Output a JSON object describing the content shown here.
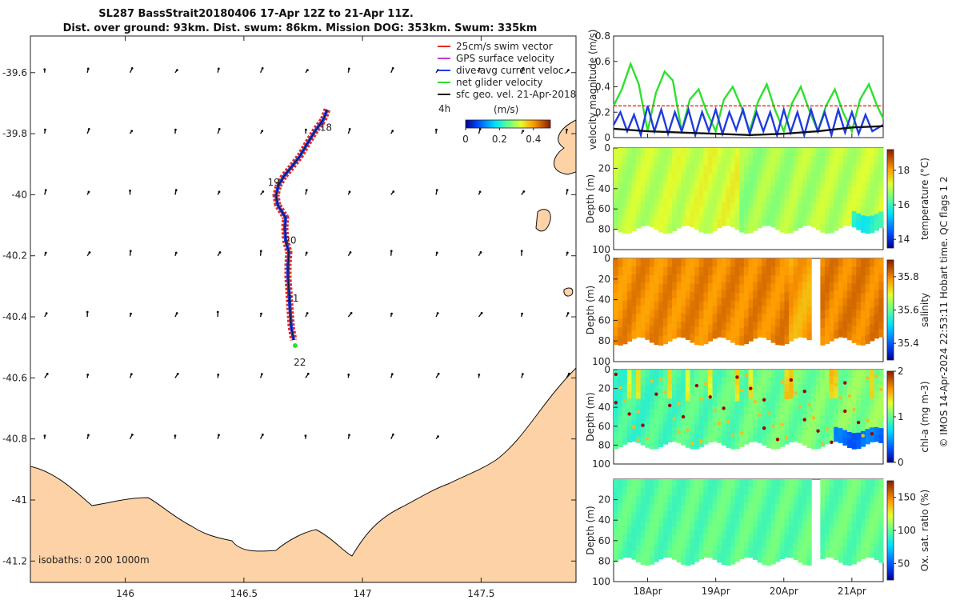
{
  "title": {
    "line1": "SL287 BassStrait20180406 17-Apr 12Z to 21-Apr 11Z.",
    "line2": "Dist. over ground: 93km. Dist. swum: 86km. Mission DOG: 353km. Swum: 335km"
  },
  "map": {
    "lon_ticks": [
      "146",
      "146.5",
      "147",
      "147.5"
    ],
    "lon_values": [
      146,
      146.5,
      147,
      147.5
    ],
    "lat_ticks": [
      "-39.6",
      "-39.8",
      "-40",
      "-40.2",
      "-40.4",
      "-40.6",
      "-40.8",
      "-41",
      "-41.2"
    ],
    "lat_values": [
      -39.6,
      -39.8,
      -40,
      -40.2,
      -40.4,
      -40.6,
      -40.8,
      -41,
      -41.2
    ],
    "legend": [
      {
        "label": "25cm/s swim vector",
        "color": "#e8281e"
      },
      {
        "label": "GPS surface velocity",
        "color": "#c23bd4"
      },
      {
        "label": "dive-avg current veloc.",
        "color": "#1f3be0"
      },
      {
        "label": "net glider velocity",
        "color": "#2ee02e"
      },
      {
        "label": "sfc geo. vel. 21-Apr-2018",
        "color": "#111111"
      }
    ],
    "colorbar_label": "(m/s)",
    "colorbar_ticks": [
      "0",
      "0.2",
      "0.4"
    ],
    "colorbar_tick_values": [
      0,
      0.2,
      0.4
    ],
    "arrow_scale_label": "4h",
    "day_labels": [
      {
        "text": "18",
        "lon": 146.82,
        "lat": -39.79
      },
      {
        "text": "19",
        "lon": 146.6,
        "lat": -39.97
      },
      {
        "text": "20",
        "lon": 146.67,
        "lat": -40.16
      },
      {
        "text": "21",
        "lon": 146.68,
        "lat": -40.35
      },
      {
        "text": "22",
        "lon": 146.71,
        "lat": -40.56
      }
    ],
    "isobaths_text": "isobaths: 0   200  1000m"
  },
  "chart_data": [
    {
      "type": "line",
      "name": "velocity magnitude",
      "ylabel": "velocity magnitude (m/s)",
      "ylim": [
        0,
        0.8
      ],
      "yticks": [
        "0",
        "0.2",
        "0.4",
        "0.6",
        "0.8"
      ],
      "ytick_values": [
        0,
        0.2,
        0.4,
        0.6,
        0.8
      ],
      "x_range": [
        "17-Apr 12Z",
        "21-Apr 11Z"
      ],
      "swim_reference": 0.25,
      "series": [
        {
          "color": "#2ee02e",
          "x": [
            17.5,
            17.62,
            17.75,
            17.87,
            18.0,
            18.12,
            18.25,
            18.37,
            18.5,
            18.62,
            18.75,
            18.87,
            19.0,
            19.12,
            19.25,
            19.37,
            19.5,
            19.62,
            19.75,
            19.87,
            20.0,
            20.12,
            20.25,
            20.37,
            20.5,
            20.62,
            20.75,
            20.87,
            21.0,
            21.12,
            21.25,
            21.37,
            21.46
          ],
          "values": [
            0.25,
            0.38,
            0.58,
            0.42,
            0.05,
            0.35,
            0.52,
            0.45,
            0.05,
            0.3,
            0.38,
            0.2,
            0.05,
            0.3,
            0.4,
            0.25,
            0.05,
            0.28,
            0.42,
            0.22,
            0.05,
            0.27,
            0.4,
            0.22,
            0.05,
            0.25,
            0.38,
            0.2,
            0.05,
            0.3,
            0.42,
            0.25,
            0.15
          ]
        },
        {
          "color": "#1f3be0",
          "x": [
            17.5,
            17.6,
            17.7,
            17.8,
            17.9,
            18.0,
            18.1,
            18.2,
            18.3,
            18.4,
            18.5,
            18.6,
            18.7,
            18.8,
            18.9,
            19.0,
            19.1,
            19.2,
            19.3,
            19.4,
            19.5,
            19.6,
            19.7,
            19.8,
            19.9,
            20.0,
            20.1,
            20.2,
            20.3,
            20.4,
            20.5,
            20.6,
            20.7,
            20.8,
            20.9,
            21.0,
            21.1,
            21.2,
            21.3,
            21.46
          ],
          "values": [
            0.1,
            0.2,
            0.05,
            0.18,
            0.02,
            0.25,
            0.05,
            0.22,
            0.03,
            0.2,
            0.05,
            0.22,
            0.02,
            0.2,
            0.05,
            0.22,
            0.03,
            0.2,
            0.06,
            0.22,
            0.03,
            0.2,
            0.05,
            0.2,
            0.02,
            0.22,
            0.04,
            0.2,
            0.02,
            0.22,
            0.05,
            0.2,
            0.02,
            0.22,
            0.04,
            0.2,
            0.03,
            0.18,
            0.05,
            0.1
          ]
        },
        {
          "color": "#111111",
          "x": [
            17.5,
            18.0,
            18.5,
            19.0,
            19.5,
            20.0,
            20.5,
            21.0,
            21.46
          ],
          "values": [
            0.07,
            0.05,
            0.04,
            0.03,
            0.02,
            0.03,
            0.05,
            0.08,
            0.09
          ]
        },
        {
          "color": "#e8281e",
          "x": [
            17.5,
            21.46
          ],
          "values": [
            0.25,
            0.25
          ]
        }
      ],
      "xticks": [
        "18Apr",
        "19Apr",
        "20Apr",
        "21Apr"
      ],
      "xtick_values": [
        18,
        19,
        20,
        21
      ]
    },
    {
      "type": "heatmap",
      "name": "temperature",
      "ylabel": "Depth (m)",
      "clabel": "temperature (°C)",
      "ylim": [
        100,
        0
      ],
      "yticks": [
        "0",
        "20",
        "40",
        "60",
        "80",
        "100"
      ],
      "ytick_values": [
        0,
        20,
        40,
        60,
        80,
        100
      ],
      "cticks": [
        "14",
        "16",
        "18"
      ],
      "ctick_values": [
        14,
        16,
        18
      ],
      "clim": [
        13.5,
        19.2
      ]
    },
    {
      "type": "heatmap",
      "name": "salinity",
      "ylabel": "Depth (m)",
      "clabel": "salinity",
      "ylim": [
        100,
        0
      ],
      "yticks": [
        "0",
        "20",
        "40",
        "60",
        "80",
        "100"
      ],
      "ytick_values": [
        0,
        20,
        40,
        60,
        80,
        100
      ],
      "cticks": [
        "35.4",
        "35.6",
        "35.8"
      ],
      "ctick_values": [
        35.4,
        35.6,
        35.8
      ],
      "clim": [
        35.3,
        35.9
      ]
    },
    {
      "type": "heatmap",
      "name": "chl-a",
      "ylabel": "Depth (m)",
      "clabel": "chl-a (mg m-3)",
      "ylim": [
        100,
        0
      ],
      "yticks": [
        "0",
        "20",
        "40",
        "60",
        "80",
        "100"
      ],
      "ytick_values": [
        0,
        20,
        40,
        60,
        80,
        100
      ],
      "cticks": [
        "0",
        "1",
        "2"
      ],
      "ctick_values": [
        0,
        1,
        2
      ],
      "clim": [
        0,
        2
      ]
    },
    {
      "type": "heatmap",
      "name": "oxygen saturation",
      "ylabel": "Depth (m)",
      "clabel": "Ox. sat. ratio (%)",
      "ylim": [
        100,
        0
      ],
      "yticks": [
        "20",
        "40",
        "60",
        "80",
        "100"
      ],
      "ytick_values": [
        20,
        40,
        60,
        80,
        100
      ],
      "cticks": [
        "50",
        "100",
        "150"
      ],
      "ctick_values": [
        50,
        100,
        150
      ],
      "clim": [
        25,
        175
      ],
      "xticks": [
        "18Apr",
        "19Apr",
        "20Apr",
        "21Apr"
      ],
      "xtick_values": [
        18,
        19,
        20,
        21
      ]
    }
  ],
  "footer": {
    "credit": "© IMOS 14-Apr-2024 22:53:11 Hobart time. QC flags 1  2"
  }
}
